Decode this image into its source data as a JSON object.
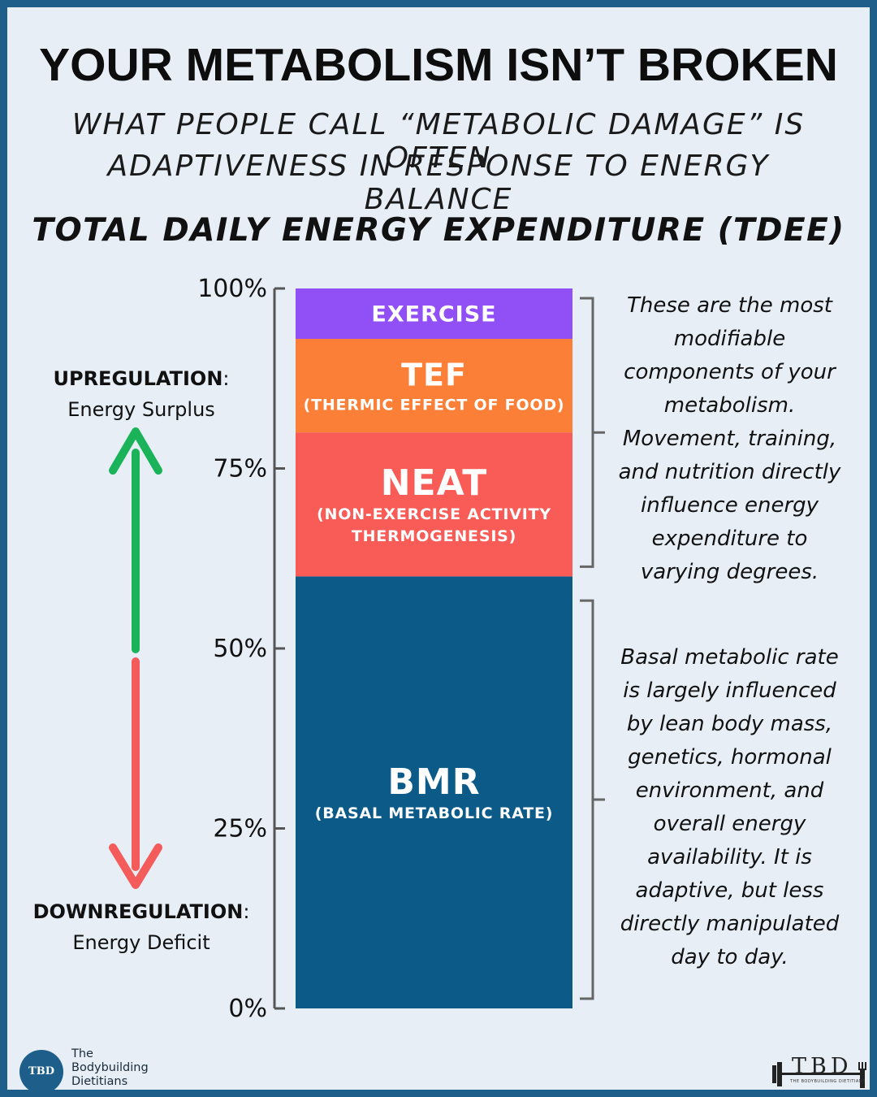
{
  "header": {
    "title": "YOUR METABOLISM ISN’T BROKEN",
    "subtitle_line1": "WHAT PEOPLE CALL “METABOLIC DAMAGE” IS OFTEN",
    "subtitle_line2": "ADAPTIVENESS IN RESPONSE TO ENERGY BALANCE"
  },
  "chart_data": {
    "type": "bar",
    "title": "TOTAL DAILY ENERGY EXPENDITURE (TDEE)",
    "stacked": true,
    "ylim": [
      0,
      100
    ],
    "ytick_values": [
      0,
      25,
      50,
      75,
      100
    ],
    "ytick_labels": [
      "0%",
      "25%",
      "50%",
      "75%",
      "100%"
    ],
    "segments": [
      {
        "name": "BMR",
        "sublabel": [
          "(BASAL METABOLIC RATE)"
        ],
        "start": 0,
        "end": 60,
        "color": "#0b5a88"
      },
      {
        "name": "NEAT",
        "sublabel": [
          "(NON-EXERCISE ACTIVITY",
          "THERMOGENESIS)"
        ],
        "start": 60,
        "end": 80,
        "color": "#f95b57"
      },
      {
        "name": "TEF",
        "sublabel": [
          "(THERMIC EFFECT OF FOOD)"
        ],
        "start": 80,
        "end": 93,
        "color": "#fb7f37"
      },
      {
        "name": "EXERCISE",
        "sublabel": [],
        "start": 93,
        "end": 100,
        "color": "#9150f5"
      }
    ],
    "annotations": {
      "upregulation_label": "UPREGULATION",
      "upregulation_text": "Energy Surplus",
      "downregulation_label": "DOWNREGULATION",
      "downregulation_text": "Energy Deficit",
      "up_arrow_color": "#1bb35a",
      "down_arrow_color": "#f45b5b"
    },
    "brackets": [
      {
        "start": 60,
        "end": 100,
        "note": [
          "These are the most",
          "modifiable",
          "components of your",
          "metabolism.",
          "Movement, training,",
          "and nutrition directly",
          "influence energy",
          "expenditure to",
          "varying degrees."
        ]
      },
      {
        "start": 0,
        "end": 58,
        "note": [
          "Basal metabolic rate",
          "is largely influenced",
          "by lean body mass,",
          "genetics, hormonal",
          "environment, and",
          "overall energy",
          "availability. It is",
          "adaptive, but less",
          "directly manipulated",
          "day to day."
        ]
      }
    ]
  },
  "footer": {
    "logo_left_mark": "TBD",
    "logo_left_lines": [
      "The",
      "Bodybuilding",
      "Dietitians"
    ],
    "logo_right_mark": "TBD",
    "logo_right_small": "THE BODYBUILDING DIETITIANS"
  },
  "colors": {
    "border": "#1d5f8a",
    "background": "#e7eef6",
    "axis": "#555555",
    "bracket": "#666666"
  }
}
